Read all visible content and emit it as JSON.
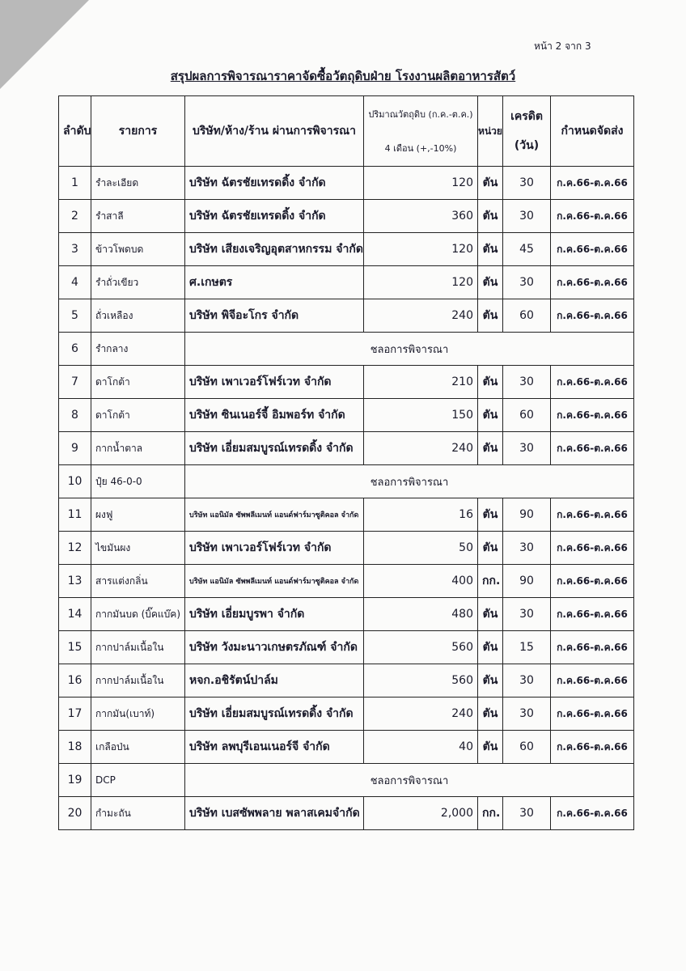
{
  "page_number": "หน้า 2 จาก 3",
  "title": "สรุปผลการพิจารณาราคาจัดซื้อวัตถุดิบฝ่าย โรงงานผลิตอาหารสัตว์",
  "table": {
    "headers": {
      "no": "ลำดับ",
      "item": "รายการ",
      "company": "บริษัท/ห้าง/ร้าน ผ่านการพิจารณา",
      "quantity": [
        "ปริมาณวัตถุดิบ (ก.ค.-ต.ค.)",
        "4 เดือน (+,-10%)"
      ],
      "unit": "หน่วย",
      "credit": [
        "เครดิต",
        "(วัน)"
      ],
      "delivery": "กำหนดจัดส่ง"
    },
    "rows": [
      {
        "no": "1",
        "item": "รำละเอียด",
        "company": "บริษัท ฉัตรชัยเทรดดิ้ง จำกัด",
        "quantity": "120",
        "unit": "ตัน",
        "credit": "30",
        "delivery": "ก.ค.66-ต.ค.66"
      },
      {
        "no": "2",
        "item": "รำสาลี",
        "company": "บริษัท ฉัตรชัยเทรดดิ้ง จำกัด",
        "quantity": "360",
        "unit": "ตัน",
        "credit": "30",
        "delivery": "ก.ค.66-ต.ค.66"
      },
      {
        "no": "3",
        "item": "ข้าวโพดบด",
        "company": "บริษัท เสียงเจริญอุตสาหกรรม จำกัด",
        "quantity": "120",
        "unit": "ตัน",
        "credit": "45",
        "delivery": "ก.ค.66-ต.ค.66"
      },
      {
        "no": "4",
        "item": "รำถั่วเขียว",
        "company": "ศ.เกษตร",
        "quantity": "120",
        "unit": "ตัน",
        "credit": "30",
        "delivery": "ก.ค.66-ต.ค.66"
      },
      {
        "no": "5",
        "item": "ถั่วเหลือง",
        "company": "บริษัท พิจีอะโกร จำกัด",
        "quantity": "240",
        "unit": "ตัน",
        "credit": "60",
        "delivery": "ก.ค.66-ต.ค.66"
      },
      {
        "no": "6",
        "item": "รำกลาง",
        "note": "ชลอการพิจารณา"
      },
      {
        "no": "7",
        "item": "ดาโกต้า",
        "company": "บริษัท เพาเวอร์โฟร์เวท จำกัด",
        "quantity": "210",
        "unit": "ตัน",
        "credit": "30",
        "delivery": "ก.ค.66-ต.ค.66"
      },
      {
        "no": "8",
        "item": "ดาโกต้า",
        "company": "บริษัท ซินเนอร์จี้ อิมพอร์ท จำกัด",
        "quantity": "150",
        "unit": "ตัน",
        "credit": "60",
        "delivery": "ก.ค.66-ต.ค.66"
      },
      {
        "no": "9",
        "item": "กากน้ำตาล",
        "company": "บริษัท เอี่ยมสมบูรณ์เทรดดิ้ง จำกัด",
        "quantity": "240",
        "unit": "ตัน",
        "credit": "30",
        "delivery": "ก.ค.66-ต.ค.66"
      },
      {
        "no": "10",
        "item": "ปุ๋ย 46-0-0",
        "note": "ชลอการพิจารณา"
      },
      {
        "no": "11",
        "item": "ผงฟู",
        "company": "บริษัท แอนิมัล ซัพพลีเมนท์ แอนด์ฟาร์มาซูติคอล จำกัด",
        "quantity": "16",
        "unit": "ตัน",
        "credit": "90",
        "delivery": "ก.ค.66-ต.ค.66"
      },
      {
        "no": "12",
        "item": "ไขมันผง",
        "company": "บริษัท เพาเวอร์โฟร์เวท จำกัด",
        "quantity": "50",
        "unit": "ตัน",
        "credit": "30",
        "delivery": "ก.ค.66-ต.ค.66"
      },
      {
        "no": "13",
        "item": "สารแต่งกลิ่น",
        "company": "บริษัท แอนิมัล ซัพพลีเมนท์ แอนด์ฟาร์มาซูติคอล จำกัด",
        "quantity": "400",
        "unit": "กก.",
        "credit": "90",
        "delivery": "ก.ค.66-ต.ค.66"
      },
      {
        "no": "14",
        "item": "กากมันบด (บิ๊คแบ๊ค)",
        "company": "บริษัท เอี่ยมบูรพา จำกัด",
        "quantity": "480",
        "unit": "ตัน",
        "credit": "30",
        "delivery": "ก.ค.66-ต.ค.66"
      },
      {
        "no": "15",
        "item": "กากปาล์มเนื้อใน",
        "company": "บริษัท วังมะนาวเกษตรภัณฑ์ จำกัด",
        "quantity": "560",
        "unit": "ตัน",
        "credit": "15",
        "delivery": "ก.ค.66-ต.ค.66"
      },
      {
        "no": "16",
        "item": "กากปาล์มเนื้อใน",
        "company": "หจก.อชิรัตน์ปาล์ม",
        "quantity": "560",
        "unit": "ตัน",
        "credit": "30",
        "delivery": "ก.ค.66-ต.ค.66"
      },
      {
        "no": "17",
        "item": "กากมัน(เบาท์)",
        "company": "บริษัท เอี่ยมสมบูรณ์เทรดดิ้ง จำกัด",
        "quantity": "240",
        "unit": "ตัน",
        "credit": "30",
        "delivery": "ก.ค.66-ต.ค.66"
      },
      {
        "no": "18",
        "item": "เกลือป่น",
        "company": "บริษัท ลพบุรีเอนเนอร์จี จำกัด",
        "quantity": "40",
        "unit": "ตัน",
        "credit": "60",
        "delivery": "ก.ค.66-ต.ค.66"
      },
      {
        "no": "19",
        "item": "DCP",
        "note": "ชลอการพิจารณา"
      },
      {
        "no": "20",
        "item": "กำมะถัน",
        "company": "บริษัท เบสซัพพลาย พลาสเคมจำกัด",
        "quantity": "2,000",
        "unit": "กก.",
        "credit": "30",
        "delivery": "ก.ค.66-ต.ค.66"
      }
    ]
  }
}
